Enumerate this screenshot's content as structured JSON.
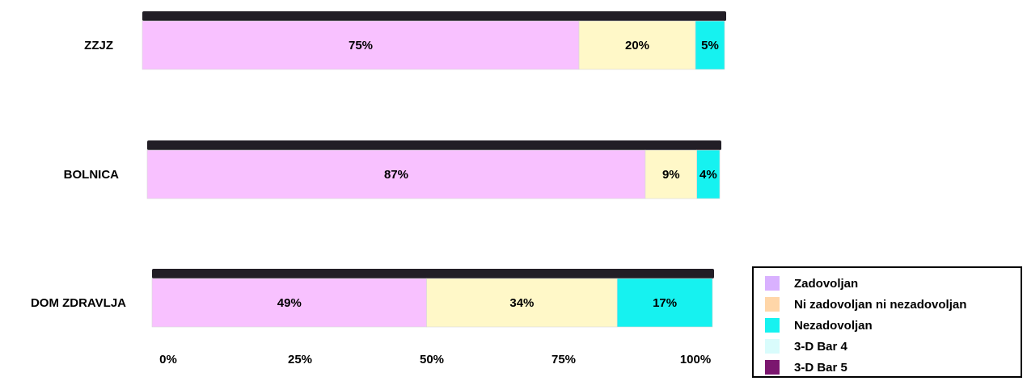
{
  "chart_data": {
    "type": "bar",
    "orientation": "horizontal",
    "stacked": "percent",
    "categories": [
      "ZZJZ",
      "BOLNICA",
      "DOM ZDRAVLJA"
    ],
    "series": [
      {
        "name": "Zadovoljan",
        "values": [
          75,
          87,
          49
        ],
        "labels": [
          "75%",
          "87%",
          "49%"
        ],
        "color": "#f8c1ff"
      },
      {
        "name": "Ni zadovoljan ni nezadovoljan",
        "values": [
          20,
          9,
          34
        ],
        "labels": [
          "20%",
          "9%",
          "34%"
        ],
        "color": "#fff8c8"
      },
      {
        "name": "Nezadovoljan",
        "values": [
          5,
          4,
          17
        ],
        "labels": [
          "5%",
          "4%",
          "17%"
        ],
        "color": "#16f2f0"
      }
    ],
    "xticks": [
      "0%",
      "25%",
      "50%",
      "75%",
      "100%"
    ],
    "xlim": [
      0,
      100
    ],
    "legend_position": "bottom-right",
    "legend": [
      {
        "label": "Zadovoljan",
        "color": "#d9b1ff"
      },
      {
        "label": "Ni zadovoljan ni nezadovoljan",
        "color": "#ffd6a8"
      },
      {
        "label": "Nezadovoljan",
        "color": "#16f2f0"
      },
      {
        "label": "3-D Bar 4",
        "color": "#d9fcfc"
      },
      {
        "label": "3-D Bar 5",
        "color": "#7b166f"
      }
    ],
    "top_color": "#221e26"
  }
}
